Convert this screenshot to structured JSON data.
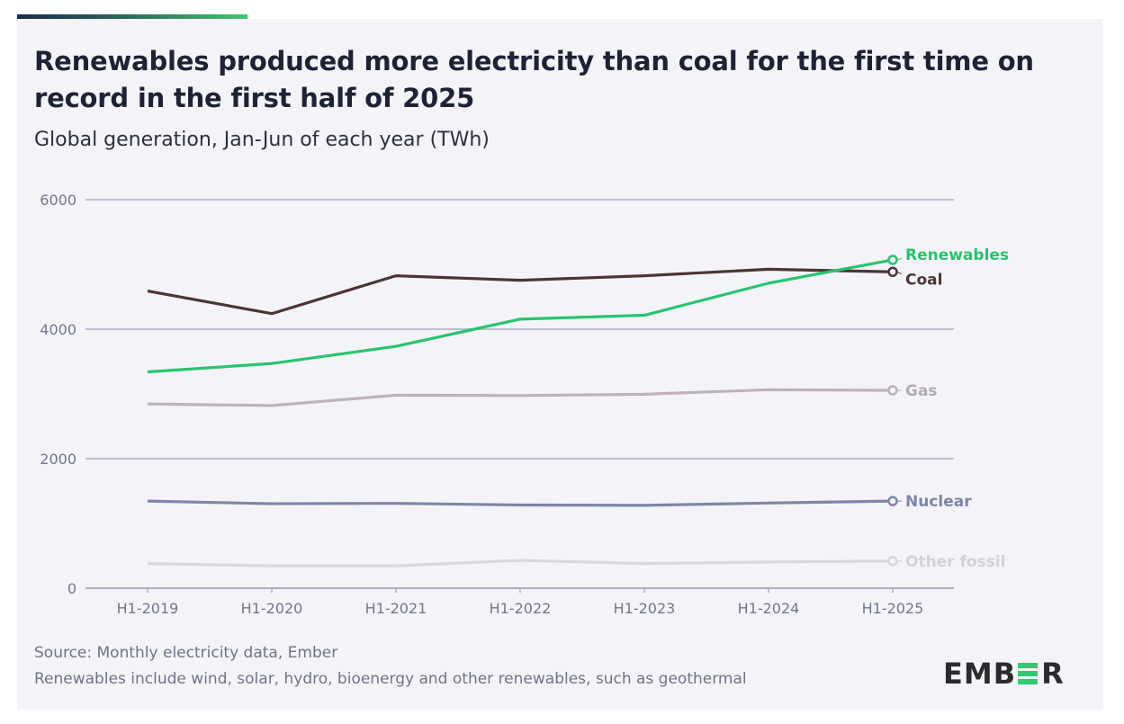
{
  "header": {
    "title": "Renewables produced more electricity than coal for the first time on record in the first half of 2025",
    "subtitle": "Global generation, Jan-Jun of each year (TWh)"
  },
  "footer": {
    "source": "Source: Monthly electricity data, Ember",
    "note": "Renewables include wind, solar, hydro, bioenergy and other renewables, such as geothermal",
    "logo_left": "EMB",
    "logo_right": "R"
  },
  "chart_data": {
    "type": "line",
    "title": "Renewables produced more electricity than coal for the first time on record in the first half of 2025",
    "subtitle": "Global generation, Jan-Jun of each year (TWh)",
    "xlabel": "",
    "ylabel": "",
    "categories": [
      "H1-2019",
      "H1-2020",
      "H1-2021",
      "H1-2022",
      "H1-2023",
      "H1-2024",
      "H1-2025"
    ],
    "ylim": [
      0,
      6000
    ],
    "yticks": [
      0,
      2000,
      4000,
      6000
    ],
    "grid": true,
    "legend": "end-of-line labels (right)",
    "series": [
      {
        "name": "Coal",
        "color": "#4a3436",
        "values": [
          4590,
          4240,
          4825,
          4755,
          4825,
          4925,
          4885
        ]
      },
      {
        "name": "Renewables",
        "color": "#27c46e",
        "values": [
          3340,
          3470,
          3735,
          4155,
          4215,
          4710,
          5070
        ]
      },
      {
        "name": "Gas",
        "color": "#bbb3b7",
        "values": [
          2845,
          2820,
          2980,
          2975,
          2995,
          3065,
          3055
        ]
      },
      {
        "name": "Nuclear",
        "color": "#7d86a8",
        "values": [
          1345,
          1305,
          1310,
          1285,
          1280,
          1315,
          1345
        ]
      },
      {
        "name": "Other fossil",
        "color": "#d8d8da",
        "values": [
          380,
          345,
          345,
          430,
          380,
          405,
          420
        ]
      }
    ],
    "label_colors": {
      "Coal": "#4a3436",
      "Renewables": "#27c46e",
      "Gas": "#b3acb0",
      "Nuclear": "#7d86a8",
      "Other fossil": "#d2d2d6"
    }
  }
}
